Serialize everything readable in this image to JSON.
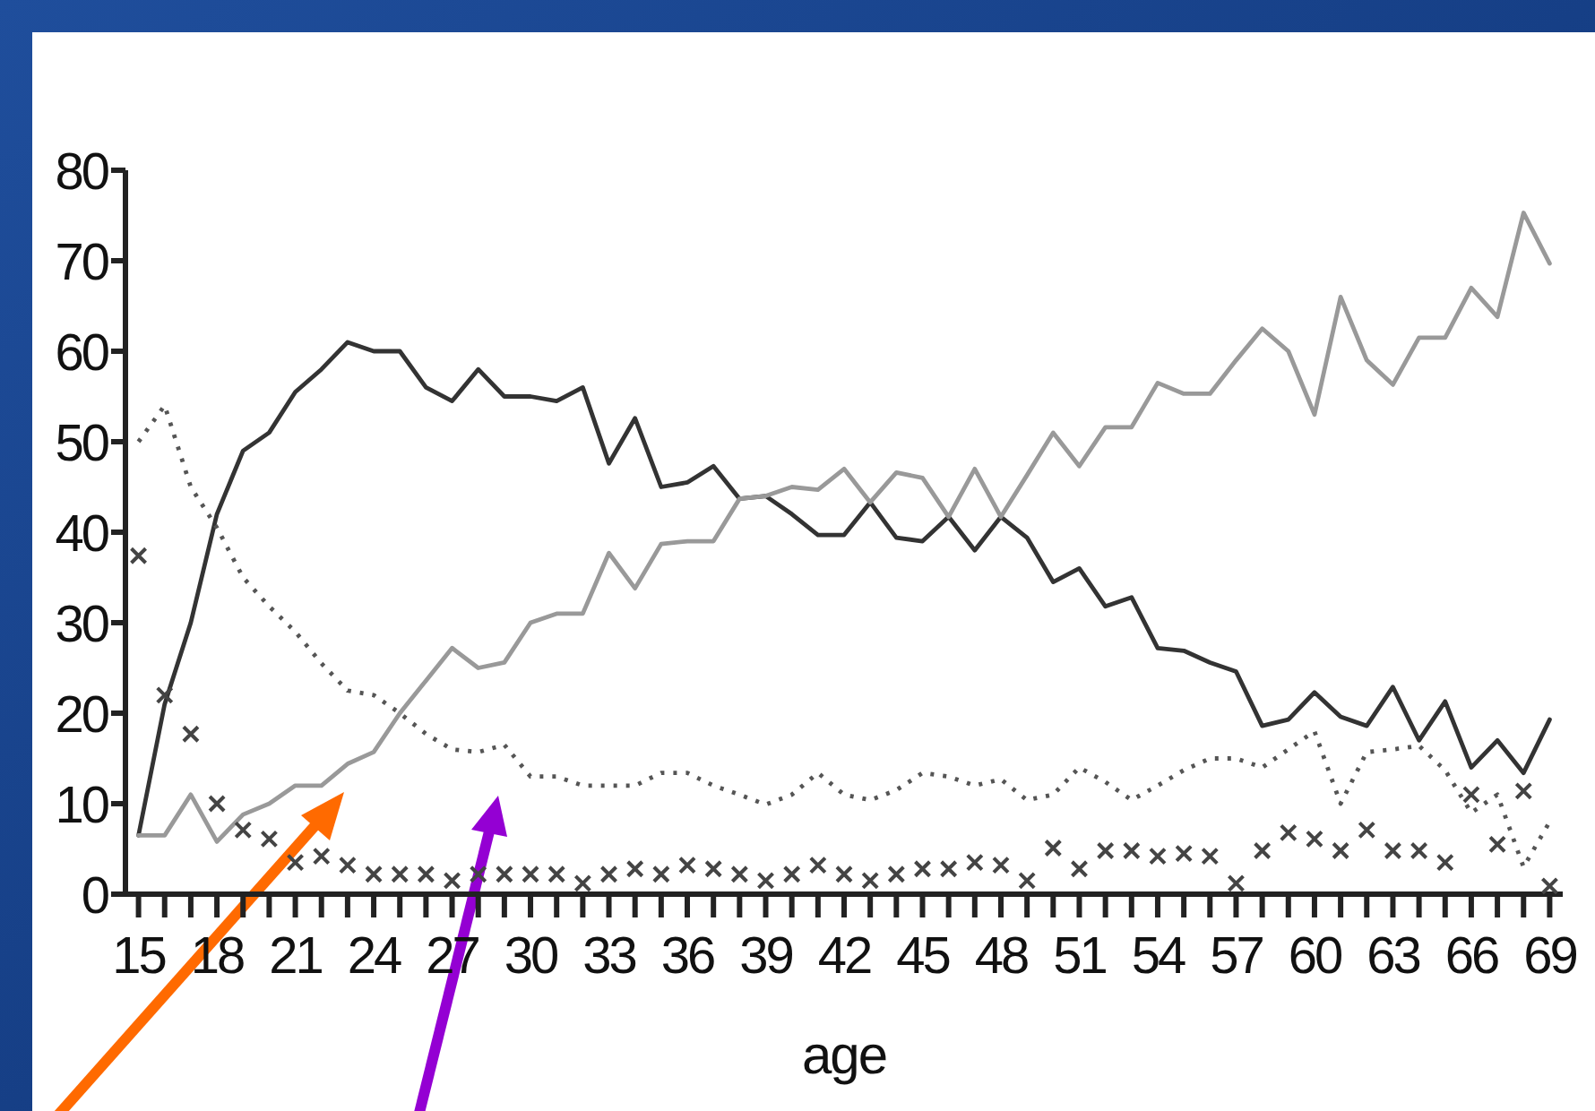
{
  "chart_data": {
    "type": "line",
    "xlabel": "age",
    "x": [
      15,
      16,
      17,
      18,
      19,
      20,
      21,
      22,
      23,
      24,
      25,
      26,
      27,
      28,
      29,
      30,
      31,
      32,
      33,
      34,
      35,
      36,
      37,
      38,
      39,
      40,
      41,
      42,
      43,
      44,
      45,
      46,
      47,
      48,
      49,
      50,
      51,
      52,
      53,
      54,
      55,
      56,
      57,
      58,
      59,
      60,
      61,
      62,
      63,
      64,
      65,
      66,
      67,
      68,
      69
    ],
    "xlim": [
      14.5,
      69.5
    ],
    "xticks": [
      15,
      {
        "value": 16,
        "label": null
      },
      {
        "value": 17,
        "label": null
      },
      18,
      {
        "value": 19,
        "label": null
      },
      {
        "value": 20,
        "label": null
      },
      21,
      {
        "value": 22,
        "label": null
      },
      {
        "value": 23,
        "label": null
      },
      24,
      {
        "value": 25,
        "label": null
      },
      {
        "value": 26,
        "label": null
      },
      27,
      {
        "value": 28,
        "label": null
      },
      {
        "value": 29,
        "label": null
      },
      30,
      {
        "value": 31,
        "label": null
      },
      {
        "value": 32,
        "label": null
      },
      33,
      {
        "value": 34,
        "label": null
      },
      {
        "value": 35,
        "label": null
      },
      36,
      {
        "value": 37,
        "label": null
      },
      {
        "value": 38,
        "label": null
      },
      39,
      {
        "value": 40,
        "label": null
      },
      {
        "value": 41,
        "label": null
      },
      42,
      {
        "value": 43,
        "label": null
      },
      {
        "value": 44,
        "label": null
      },
      45,
      {
        "value": 46,
        "label": null
      },
      {
        "value": 47,
        "label": null
      },
      48,
      {
        "value": 49,
        "label": null
      },
      {
        "value": 50,
        "label": null
      },
      51,
      {
        "value": 52,
        "label": null
      },
      {
        "value": 53,
        "label": null
      },
      54,
      {
        "value": 55,
        "label": null
      },
      {
        "value": 56,
        "label": null
      },
      57,
      {
        "value": 58,
        "label": null
      },
      {
        "value": 59,
        "label": null
      },
      60,
      {
        "value": 61,
        "label": null
      },
      {
        "value": 62,
        "label": null
      },
      63,
      {
        "value": 64,
        "label": null
      },
      {
        "value": 65,
        "label": null
      },
      66,
      {
        "value": 67,
        "label": null
      },
      {
        "value": 68,
        "label": null
      },
      69
    ],
    "ylim": [
      0,
      80
    ],
    "yticks": [
      0,
      10,
      20,
      30,
      40,
      50,
      60,
      70,
      80
    ],
    "series": [
      {
        "type": "line",
        "line_style": "solid",
        "color": "#333333",
        "values": [
          6.5,
          21,
          30,
          42,
          49,
          51,
          55.5,
          58,
          61,
          60,
          60,
          56,
          54.5,
          58,
          55,
          55,
          54.5,
          56,
          47.6,
          52.6,
          45,
          45.5,
          47.3,
          43.7,
          44,
          42,
          39.7,
          39.7,
          43.3,
          39.4,
          39,
          41.7,
          38,
          41.7,
          39.4,
          34.5,
          36,
          31.8,
          32.8,
          27.2,
          26.9,
          25.6,
          24.6,
          18.6,
          19.3,
          22.3,
          19.6,
          18.6,
          22.9,
          17,
          21.3,
          14,
          17,
          13.4,
          19.3
        ]
      },
      {
        "type": "line",
        "line_style": "solid",
        "color": "#999999",
        "values": [
          6.5,
          6.5,
          11,
          5.8,
          8.8,
          10,
          12,
          12,
          14.4,
          15.7,
          20,
          23.6,
          27.2,
          25,
          25.6,
          30,
          31,
          31,
          37.7,
          33.8,
          38.7,
          39,
          39,
          43.7,
          44,
          45,
          44.7,
          47,
          43.3,
          46.6,
          46,
          41.7,
          47,
          41.7,
          46.3,
          51,
          47.3,
          51.6,
          51.6,
          56.5,
          55.3,
          55.3,
          59,
          62.5,
          60,
          53,
          66,
          59,
          56.3,
          61.5,
          61.5,
          67,
          63.8,
          75.3,
          69.7
        ]
      },
      {
        "type": "line",
        "line_style": "dotted",
        "color": "#555555",
        "values": [
          50,
          54,
          45,
          40.5,
          35,
          31.8,
          29,
          25.5,
          22.5,
          22,
          20,
          17.7,
          16,
          15.7,
          16.5,
          13,
          13,
          12,
          12,
          12,
          13.4,
          13.4,
          12,
          11,
          9.9,
          11,
          13.4,
          11,
          10.4,
          11.5,
          13.4,
          13,
          12,
          12.7,
          10.4,
          11,
          14,
          12.4,
          10.4,
          12,
          13.7,
          15,
          15,
          14,
          16,
          18,
          10,
          15.7,
          16,
          16.4,
          13.7,
          9,
          11,
          3,
          8
        ]
      },
      {
        "type": "scatter",
        "marker": "cross",
        "color": "#444444",
        "values": [
          37.4,
          22,
          17.7,
          10,
          7.1,
          6.1,
          3.5,
          4.2,
          3.2,
          2.2,
          2.2,
          2.2,
          1.5,
          2.2,
          2.2,
          2.2,
          2.2,
          1.2,
          2.2,
          2.8,
          2.2,
          3.2,
          2.8,
          2.2,
          1.5,
          2.2,
          3.2,
          2.2,
          1.5,
          2.2,
          2.8,
          2.8,
          3.5,
          3.2,
          1.5,
          5.1,
          2.8,
          4.8,
          4.8,
          4.2,
          4.5,
          4.2,
          1.2,
          4.8,
          6.8,
          6.1,
          4.8,
          7.1,
          4.8,
          4.8,
          3.5,
          11,
          5.5,
          11.4,
          0.9
        ]
      }
    ]
  }
}
